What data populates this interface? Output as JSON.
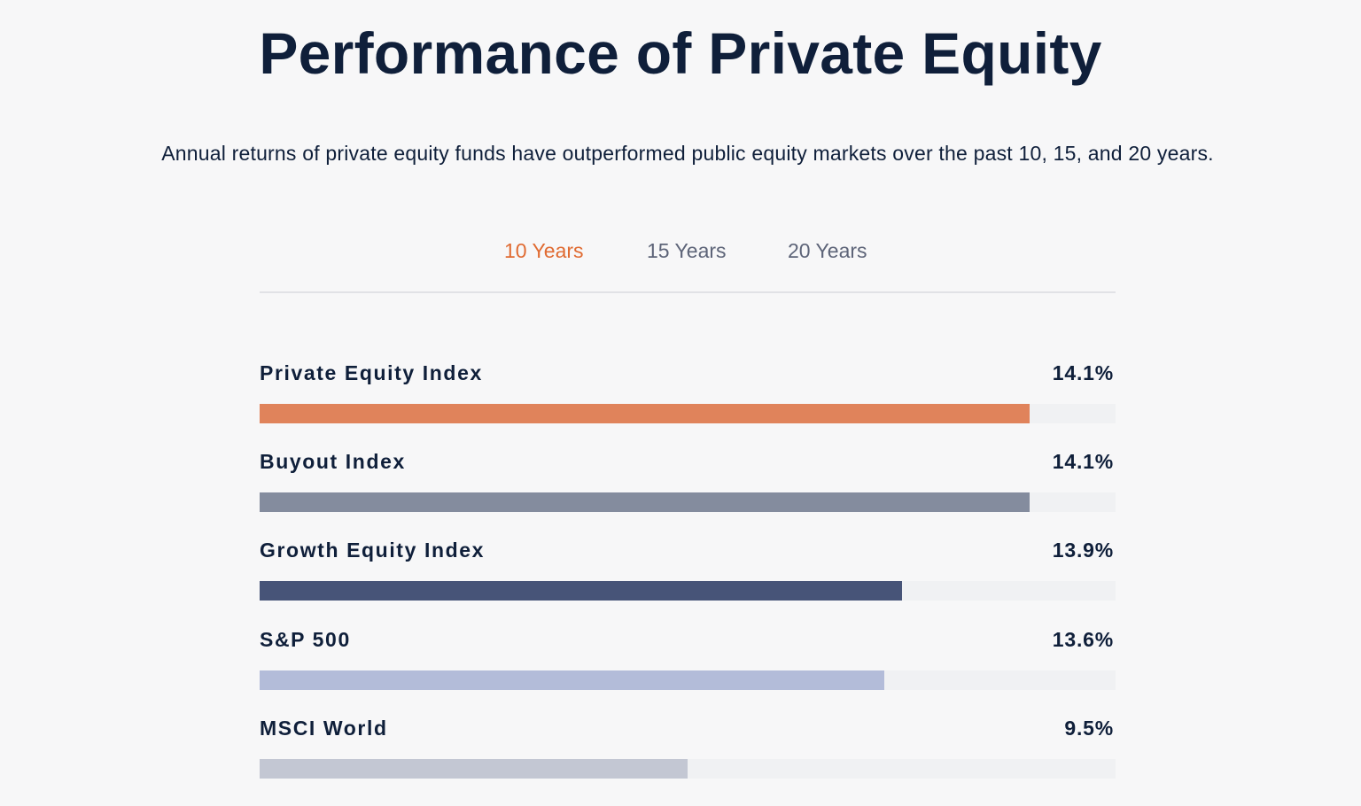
{
  "header": {
    "title": "Performance of Private Equity",
    "subtitle": "Annual returns of private equity funds have outperformed public equity markets over the past 10, 15, and 20 years."
  },
  "tabs": [
    {
      "label": "10 Years",
      "active": true
    },
    {
      "label": "15 Years",
      "active": false
    },
    {
      "label": "20 Years",
      "active": false
    }
  ],
  "colors": {
    "accent": "#e06b32",
    "text": "#0f1f3a",
    "track": "#f0f1f3"
  },
  "chart_data": {
    "type": "bar",
    "orientation": "horizontal",
    "categories": [
      "Private Equity Index",
      "Buyout Index",
      "Growth Equity Index",
      "S&P 500",
      "MSCI World"
    ],
    "values": [
      14.1,
      14.1,
      13.9,
      13.6,
      9.5
    ],
    "value_labels": [
      "14.1%",
      "14.1%",
      "13.9%",
      "13.6%",
      "9.5%"
    ],
    "fill_fraction": [
      0.9,
      0.9,
      0.75,
      0.73,
      0.5
    ],
    "colors": [
      "#e0835b",
      "#848c9e",
      "#475478",
      "#b3bcd9",
      "#c3c7d3"
    ],
    "unit": "%",
    "legend": "none",
    "grid": false
  }
}
